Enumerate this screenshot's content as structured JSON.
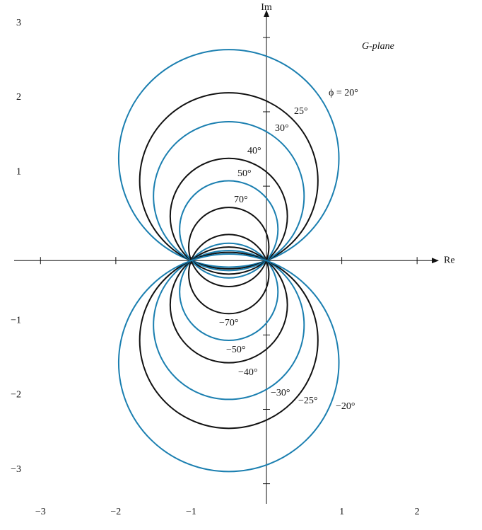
{
  "chart_data": {
    "type": "constant-phase-circles",
    "title": "G-plane",
    "x_label": "Re",
    "y_label": "Im",
    "xlim": [
      -3.35,
      2.28
    ],
    "ylim": [
      -3.27,
      3.36
    ],
    "xticks": [
      {
        "value": -3,
        "label": "−3"
      },
      {
        "value": -2,
        "label": "−2"
      },
      {
        "value": -1,
        "label": "−1"
      },
      1,
      2
    ],
    "yticks": [
      {
        "value": -3,
        "label": "−3"
      },
      {
        "value": -2,
        "label": "−2"
      },
      {
        "value": -1,
        "label": "−1"
      },
      1,
      2,
      3
    ],
    "grid": false,
    "series": [
      {
        "name": "ϕ = 20°",
        "phi": 20,
        "color": "#1b7fb0"
      },
      {
        "name": "25°",
        "phi": 25,
        "color": "#111111"
      },
      {
        "name": "30°",
        "phi": 30,
        "color": "#1b7fb0"
      },
      {
        "name": "40°",
        "phi": 40,
        "color": "#111111"
      },
      {
        "name": "50°",
        "phi": 50,
        "color": "#1b7fb0"
      },
      {
        "name": "70°",
        "phi": 70,
        "color": "#111111"
      },
      {
        "name": "−70°",
        "phi": -70,
        "color": "#111111"
      },
      {
        "name": "−50°",
        "phi": -50,
        "color": "#1b7fb0"
      },
      {
        "name": "−40°",
        "phi": -40,
        "color": "#111111"
      },
      {
        "name": "−30°",
        "phi": -30,
        "color": "#1b7fb0"
      },
      {
        "name": "−25°",
        "phi": -25,
        "color": "#111111"
      },
      {
        "name": "−20°",
        "phi": -20,
        "color": "#1b7fb0"
      }
    ]
  }
}
